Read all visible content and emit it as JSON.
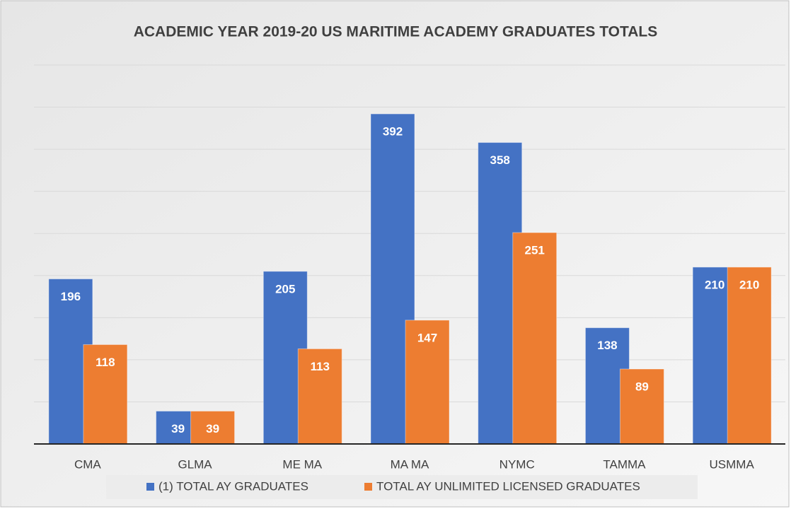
{
  "chart_data": {
    "type": "bar",
    "title": "ACADEMIC YEAR 2019-20 US MARITIME ACADEMY GRADUATES TOTALS",
    "categories": [
      "CMA",
      "GLMA",
      "ME MA",
      "MA MA",
      "NYMC",
      "TAMMA",
      "USMMA"
    ],
    "series": [
      {
        "name": "(1) TOTAL AY GRADUATES",
        "color": "#4472c4",
        "values": [
          196,
          39,
          205,
          392,
          358,
          138,
          210
        ]
      },
      {
        "name": "TOTAL AY UNLIMITED LICENSED GRADUATES",
        "color": "#ed7d31",
        "values": [
          118,
          39,
          113,
          147,
          251,
          89,
          210
        ]
      }
    ],
    "ylim": [
      0,
      450
    ],
    "yticks": [
      0,
      50,
      100,
      150,
      200,
      250,
      300,
      350,
      400,
      450
    ],
    "grid": true,
    "legend": "bottom"
  }
}
